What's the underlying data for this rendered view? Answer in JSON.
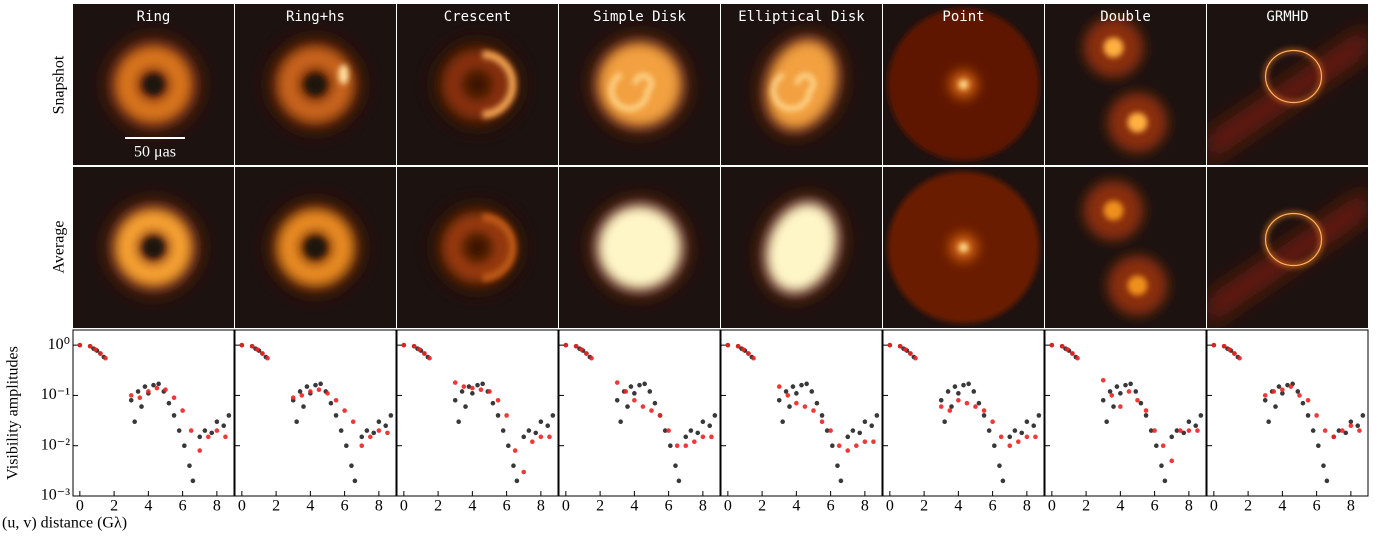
{
  "row_labels": [
    "Snapshot",
    "Average"
  ],
  "scale_bar_label": "50 μas",
  "chart_data": [
    {
      "type": "scatter",
      "title": "Ring",
      "ylabel": "Visibility amplitudes",
      "xlabel": "(u, v) distance (Gλ)",
      "log_y": true,
      "xlim": [
        -0.4,
        9
      ],
      "ylim": [
        0.001,
        2
      ],
      "xticks": [
        0,
        2,
        4,
        6,
        8
      ],
      "yticks": [
        {
          "value": 0.001,
          "label": "10⁻³"
        },
        {
          "value": 0.01,
          "label": "10⁻²"
        },
        {
          "value": 0.1,
          "label": "10⁻¹"
        },
        {
          "value": 1,
          "label": "10⁰"
        }
      ],
      "series": [
        {
          "color": "#222222",
          "x": [
            0,
            0.6,
            0.8,
            1.0,
            1.2,
            1.4,
            3.0,
            3.2,
            3.4,
            3.6,
            3.8,
            4.0,
            4.3,
            4.6,
            4.9,
            5.2,
            5.5,
            5.8,
            6.1,
            6.4,
            6.6,
            7.0,
            7.3,
            7.7,
            8.0,
            8.4,
            8.7
          ],
          "values": [
            1.0,
            0.95,
            0.85,
            0.78,
            0.68,
            0.58,
            0.08,
            0.03,
            0.12,
            0.06,
            0.15,
            0.11,
            0.16,
            0.17,
            0.12,
            0.07,
            0.04,
            0.02,
            0.01,
            0.004,
            0.002,
            0.015,
            0.02,
            0.018,
            0.03,
            0.025,
            0.04
          ]
        },
        {
          "color": "#ee2222",
          "x": [
            0,
            0.6,
            0.9,
            1.2,
            1.5,
            3.0,
            3.5,
            4.0,
            4.5,
            5.0,
            5.5,
            6.0,
            6.5,
            7.0,
            7.5,
            8.0,
            8.5
          ],
          "values": [
            1,
            0.95,
            0.82,
            0.68,
            0.55,
            0.1,
            0.09,
            0.12,
            0.14,
            0.13,
            0.09,
            0.05,
            0.02,
            0.008,
            0.015,
            0.02,
            0.015
          ]
        }
      ]
    },
    {
      "type": "scatter",
      "title": "Ring+hs",
      "log_y": true,
      "xlim": [
        -0.4,
        9
      ],
      "ylim": [
        0.001,
        2
      ],
      "xticks": [
        0,
        2,
        4,
        6,
        8
      ],
      "series": [
        {
          "color": "#222222",
          "x": [
            0,
            0.6,
            0.8,
            1.0,
            1.2,
            1.4,
            3.0,
            3.2,
            3.4,
            3.6,
            3.8,
            4.0,
            4.3,
            4.6,
            4.9,
            5.2,
            5.5,
            5.8,
            6.1,
            6.4,
            6.6,
            7.0,
            7.3,
            7.7,
            8.0,
            8.4,
            8.7
          ],
          "values": [
            1.0,
            0.95,
            0.85,
            0.78,
            0.68,
            0.58,
            0.08,
            0.03,
            0.12,
            0.06,
            0.15,
            0.11,
            0.16,
            0.17,
            0.12,
            0.07,
            0.04,
            0.02,
            0.01,
            0.004,
            0.002,
            0.015,
            0.02,
            0.018,
            0.03,
            0.025,
            0.04
          ]
        },
        {
          "color": "#ee2222",
          "x": [
            0,
            0.6,
            0.9,
            1.2,
            1.5,
            3.0,
            3.5,
            4.0,
            4.5,
            5.0,
            5.5,
            6.0,
            6.5,
            7.0,
            7.5,
            8.0,
            8.5
          ],
          "values": [
            1,
            0.95,
            0.82,
            0.68,
            0.55,
            0.09,
            0.1,
            0.12,
            0.13,
            0.11,
            0.08,
            0.05,
            0.03,
            0.01,
            0.015,
            0.02,
            0.018
          ]
        }
      ]
    },
    {
      "type": "scatter",
      "title": "Crescent",
      "log_y": true,
      "xlim": [
        -0.4,
        9
      ],
      "ylim": [
        0.001,
        2
      ],
      "xticks": [
        0,
        2,
        4,
        6,
        8
      ],
      "series": [
        {
          "color": "#222222",
          "x": [
            0,
            0.6,
            0.8,
            1.0,
            1.2,
            1.4,
            3.0,
            3.2,
            3.4,
            3.6,
            3.8,
            4.0,
            4.3,
            4.6,
            4.9,
            5.2,
            5.5,
            5.8,
            6.1,
            6.4,
            6.6,
            7.0,
            7.3,
            7.7,
            8.0,
            8.4,
            8.7
          ],
          "values": [
            1.0,
            0.95,
            0.85,
            0.78,
            0.68,
            0.58,
            0.08,
            0.03,
            0.12,
            0.06,
            0.15,
            0.11,
            0.16,
            0.17,
            0.12,
            0.07,
            0.04,
            0.02,
            0.01,
            0.004,
            0.002,
            0.015,
            0.02,
            0.018,
            0.03,
            0.025,
            0.04
          ]
        },
        {
          "color": "#ee2222",
          "x": [
            0,
            0.6,
            0.9,
            1.2,
            1.5,
            3.0,
            3.5,
            4.0,
            4.5,
            5.0,
            5.5,
            6.0,
            6.5,
            7.0,
            7.5,
            8.0,
            8.5
          ],
          "values": [
            1,
            0.95,
            0.82,
            0.68,
            0.55,
            0.18,
            0.15,
            0.14,
            0.13,
            0.12,
            0.08,
            0.04,
            0.008,
            0.003,
            0.012,
            0.015,
            0.015
          ]
        }
      ]
    },
    {
      "type": "scatter",
      "title": "Simple Disk",
      "log_y": true,
      "xlim": [
        -0.4,
        9
      ],
      "ylim": [
        0.001,
        2
      ],
      "xticks": [
        0,
        2,
        4,
        6,
        8
      ],
      "series": [
        {
          "color": "#222222",
          "x": [
            0,
            0.6,
            0.8,
            1.0,
            1.2,
            1.4,
            3.0,
            3.2,
            3.4,
            3.6,
            3.8,
            4.0,
            4.3,
            4.6,
            4.9,
            5.2,
            5.5,
            5.8,
            6.1,
            6.4,
            6.6,
            7.0,
            7.3,
            7.7,
            8.0,
            8.4,
            8.7
          ],
          "values": [
            1.0,
            0.95,
            0.85,
            0.78,
            0.68,
            0.58,
            0.08,
            0.03,
            0.12,
            0.06,
            0.15,
            0.11,
            0.16,
            0.17,
            0.12,
            0.07,
            0.04,
            0.02,
            0.01,
            0.004,
            0.002,
            0.015,
            0.02,
            0.018,
            0.03,
            0.025,
            0.04
          ]
        },
        {
          "color": "#ee2222",
          "x": [
            0,
            0.6,
            0.9,
            1.2,
            1.5,
            3.0,
            3.5,
            4.0,
            4.5,
            5.0,
            5.5,
            6.0,
            6.5,
            7.0,
            7.5,
            8.0,
            8.5
          ],
          "values": [
            1,
            0.95,
            0.82,
            0.68,
            0.55,
            0.18,
            0.12,
            0.08,
            0.06,
            0.05,
            0.04,
            0.02,
            0.01,
            0.01,
            0.012,
            0.015,
            0.015
          ]
        }
      ]
    },
    {
      "type": "scatter",
      "title": "Elliptical Disk",
      "log_y": true,
      "xlim": [
        -0.4,
        9
      ],
      "ylim": [
        0.001,
        2
      ],
      "xticks": [
        0,
        2,
        4,
        6,
        8
      ],
      "series": [
        {
          "color": "#222222",
          "x": [
            0,
            0.6,
            0.8,
            1.0,
            1.2,
            1.4,
            3.0,
            3.2,
            3.4,
            3.6,
            3.8,
            4.0,
            4.3,
            4.6,
            4.9,
            5.2,
            5.5,
            5.8,
            6.1,
            6.4,
            6.6,
            7.0,
            7.3,
            7.7,
            8.0,
            8.4,
            8.7
          ],
          "values": [
            1.0,
            0.95,
            0.85,
            0.78,
            0.68,
            0.58,
            0.08,
            0.03,
            0.12,
            0.06,
            0.15,
            0.11,
            0.16,
            0.17,
            0.12,
            0.07,
            0.04,
            0.02,
            0.01,
            0.004,
            0.002,
            0.015,
            0.02,
            0.018,
            0.03,
            0.025,
            0.04
          ]
        },
        {
          "color": "#ee2222",
          "x": [
            0,
            0.6,
            0.9,
            1.2,
            1.5,
            3.0,
            3.5,
            4.0,
            4.5,
            5.0,
            5.5,
            6.0,
            6.5,
            7.0,
            7.5,
            8.0,
            8.5
          ],
          "values": [
            1,
            0.95,
            0.82,
            0.68,
            0.55,
            0.15,
            0.1,
            0.07,
            0.06,
            0.05,
            0.03,
            0.02,
            0.01,
            0.008,
            0.01,
            0.012,
            0.012
          ]
        }
      ]
    },
    {
      "type": "scatter",
      "title": "Point",
      "log_y": true,
      "xlim": [
        -0.4,
        9
      ],
      "ylim": [
        0.001,
        2
      ],
      "xticks": [
        0,
        2,
        4,
        6,
        8
      ],
      "series": [
        {
          "color": "#222222",
          "x": [
            0,
            0.6,
            0.8,
            1.0,
            1.2,
            1.4,
            3.0,
            3.2,
            3.4,
            3.6,
            3.8,
            4.0,
            4.3,
            4.6,
            4.9,
            5.2,
            5.5,
            5.8,
            6.1,
            6.4,
            6.6,
            7.0,
            7.3,
            7.7,
            8.0,
            8.4,
            8.7
          ],
          "values": [
            1.0,
            0.95,
            0.85,
            0.78,
            0.68,
            0.58,
            0.08,
            0.03,
            0.12,
            0.06,
            0.15,
            0.11,
            0.16,
            0.17,
            0.12,
            0.07,
            0.04,
            0.02,
            0.01,
            0.004,
            0.002,
            0.015,
            0.02,
            0.018,
            0.03,
            0.025,
            0.04
          ]
        },
        {
          "color": "#ee2222",
          "x": [
            0,
            0.6,
            0.9,
            1.2,
            1.5,
            3.0,
            3.5,
            4.0,
            4.5,
            5.0,
            5.5,
            6.0,
            6.5,
            7.0,
            7.5,
            8.0,
            8.5
          ],
          "values": [
            1,
            0.95,
            0.82,
            0.68,
            0.55,
            0.06,
            0.05,
            0.08,
            0.07,
            0.06,
            0.05,
            0.03,
            0.015,
            0.01,
            0.012,
            0.015,
            0.015
          ]
        }
      ]
    },
    {
      "type": "scatter",
      "title": "Double",
      "log_y": true,
      "xlim": [
        -0.4,
        9
      ],
      "ylim": [
        0.001,
        2
      ],
      "xticks": [
        0,
        2,
        4,
        6,
        8
      ],
      "series": [
        {
          "color": "#222222",
          "x": [
            0,
            0.6,
            0.8,
            1.0,
            1.2,
            1.4,
            3.0,
            3.2,
            3.4,
            3.6,
            3.8,
            4.0,
            4.3,
            4.6,
            4.9,
            5.2,
            5.5,
            5.8,
            6.1,
            6.4,
            6.6,
            7.0,
            7.3,
            7.7,
            8.0,
            8.4,
            8.7
          ],
          "values": [
            1.0,
            0.95,
            0.85,
            0.78,
            0.68,
            0.58,
            0.08,
            0.03,
            0.12,
            0.06,
            0.15,
            0.11,
            0.16,
            0.17,
            0.12,
            0.07,
            0.04,
            0.02,
            0.01,
            0.004,
            0.002,
            0.015,
            0.02,
            0.018,
            0.03,
            0.025,
            0.04
          ]
        },
        {
          "color": "#ee2222",
          "x": [
            0,
            0.6,
            0.9,
            1.2,
            1.5,
            3.0,
            3.5,
            4.0,
            4.5,
            5.0,
            5.5,
            6.0,
            6.5,
            7.0,
            7.5,
            8.0,
            8.5
          ],
          "values": [
            1,
            0.95,
            0.82,
            0.68,
            0.55,
            0.2,
            0.1,
            0.06,
            0.12,
            0.08,
            0.05,
            0.02,
            0.01,
            0.005,
            0.02,
            0.02,
            0.02
          ]
        }
      ]
    },
    {
      "type": "scatter",
      "title": "GRMHD",
      "log_y": true,
      "xlim": [
        -0.4,
        9
      ],
      "ylim": [
        0.001,
        2
      ],
      "xticks": [
        0,
        2,
        4,
        6,
        8
      ],
      "series": [
        {
          "color": "#222222",
          "x": [
            0,
            0.6,
            0.8,
            1.0,
            1.2,
            1.4,
            3.0,
            3.2,
            3.4,
            3.6,
            3.8,
            4.0,
            4.3,
            4.6,
            4.9,
            5.2,
            5.5,
            5.8,
            6.1,
            6.4,
            6.6,
            7.0,
            7.3,
            7.7,
            8.0,
            8.4,
            8.7
          ],
          "values": [
            1.0,
            0.95,
            0.85,
            0.78,
            0.68,
            0.58,
            0.08,
            0.03,
            0.12,
            0.06,
            0.15,
            0.11,
            0.16,
            0.17,
            0.12,
            0.07,
            0.04,
            0.02,
            0.01,
            0.004,
            0.002,
            0.015,
            0.02,
            0.018,
            0.03,
            0.025,
            0.04
          ]
        },
        {
          "color": "#ee2222",
          "x": [
            0,
            0.6,
            0.9,
            1.2,
            1.5,
            3.0,
            3.5,
            4.0,
            4.5,
            5.0,
            5.5,
            6.0,
            6.5,
            7.0,
            7.5,
            8.0,
            8.5
          ],
          "values": [
            1,
            0.95,
            0.82,
            0.68,
            0.55,
            0.1,
            0.12,
            0.13,
            0.15,
            0.1,
            0.08,
            0.04,
            0.02,
            0.015,
            0.02,
            0.025,
            0.02
          ]
        }
      ]
    }
  ]
}
